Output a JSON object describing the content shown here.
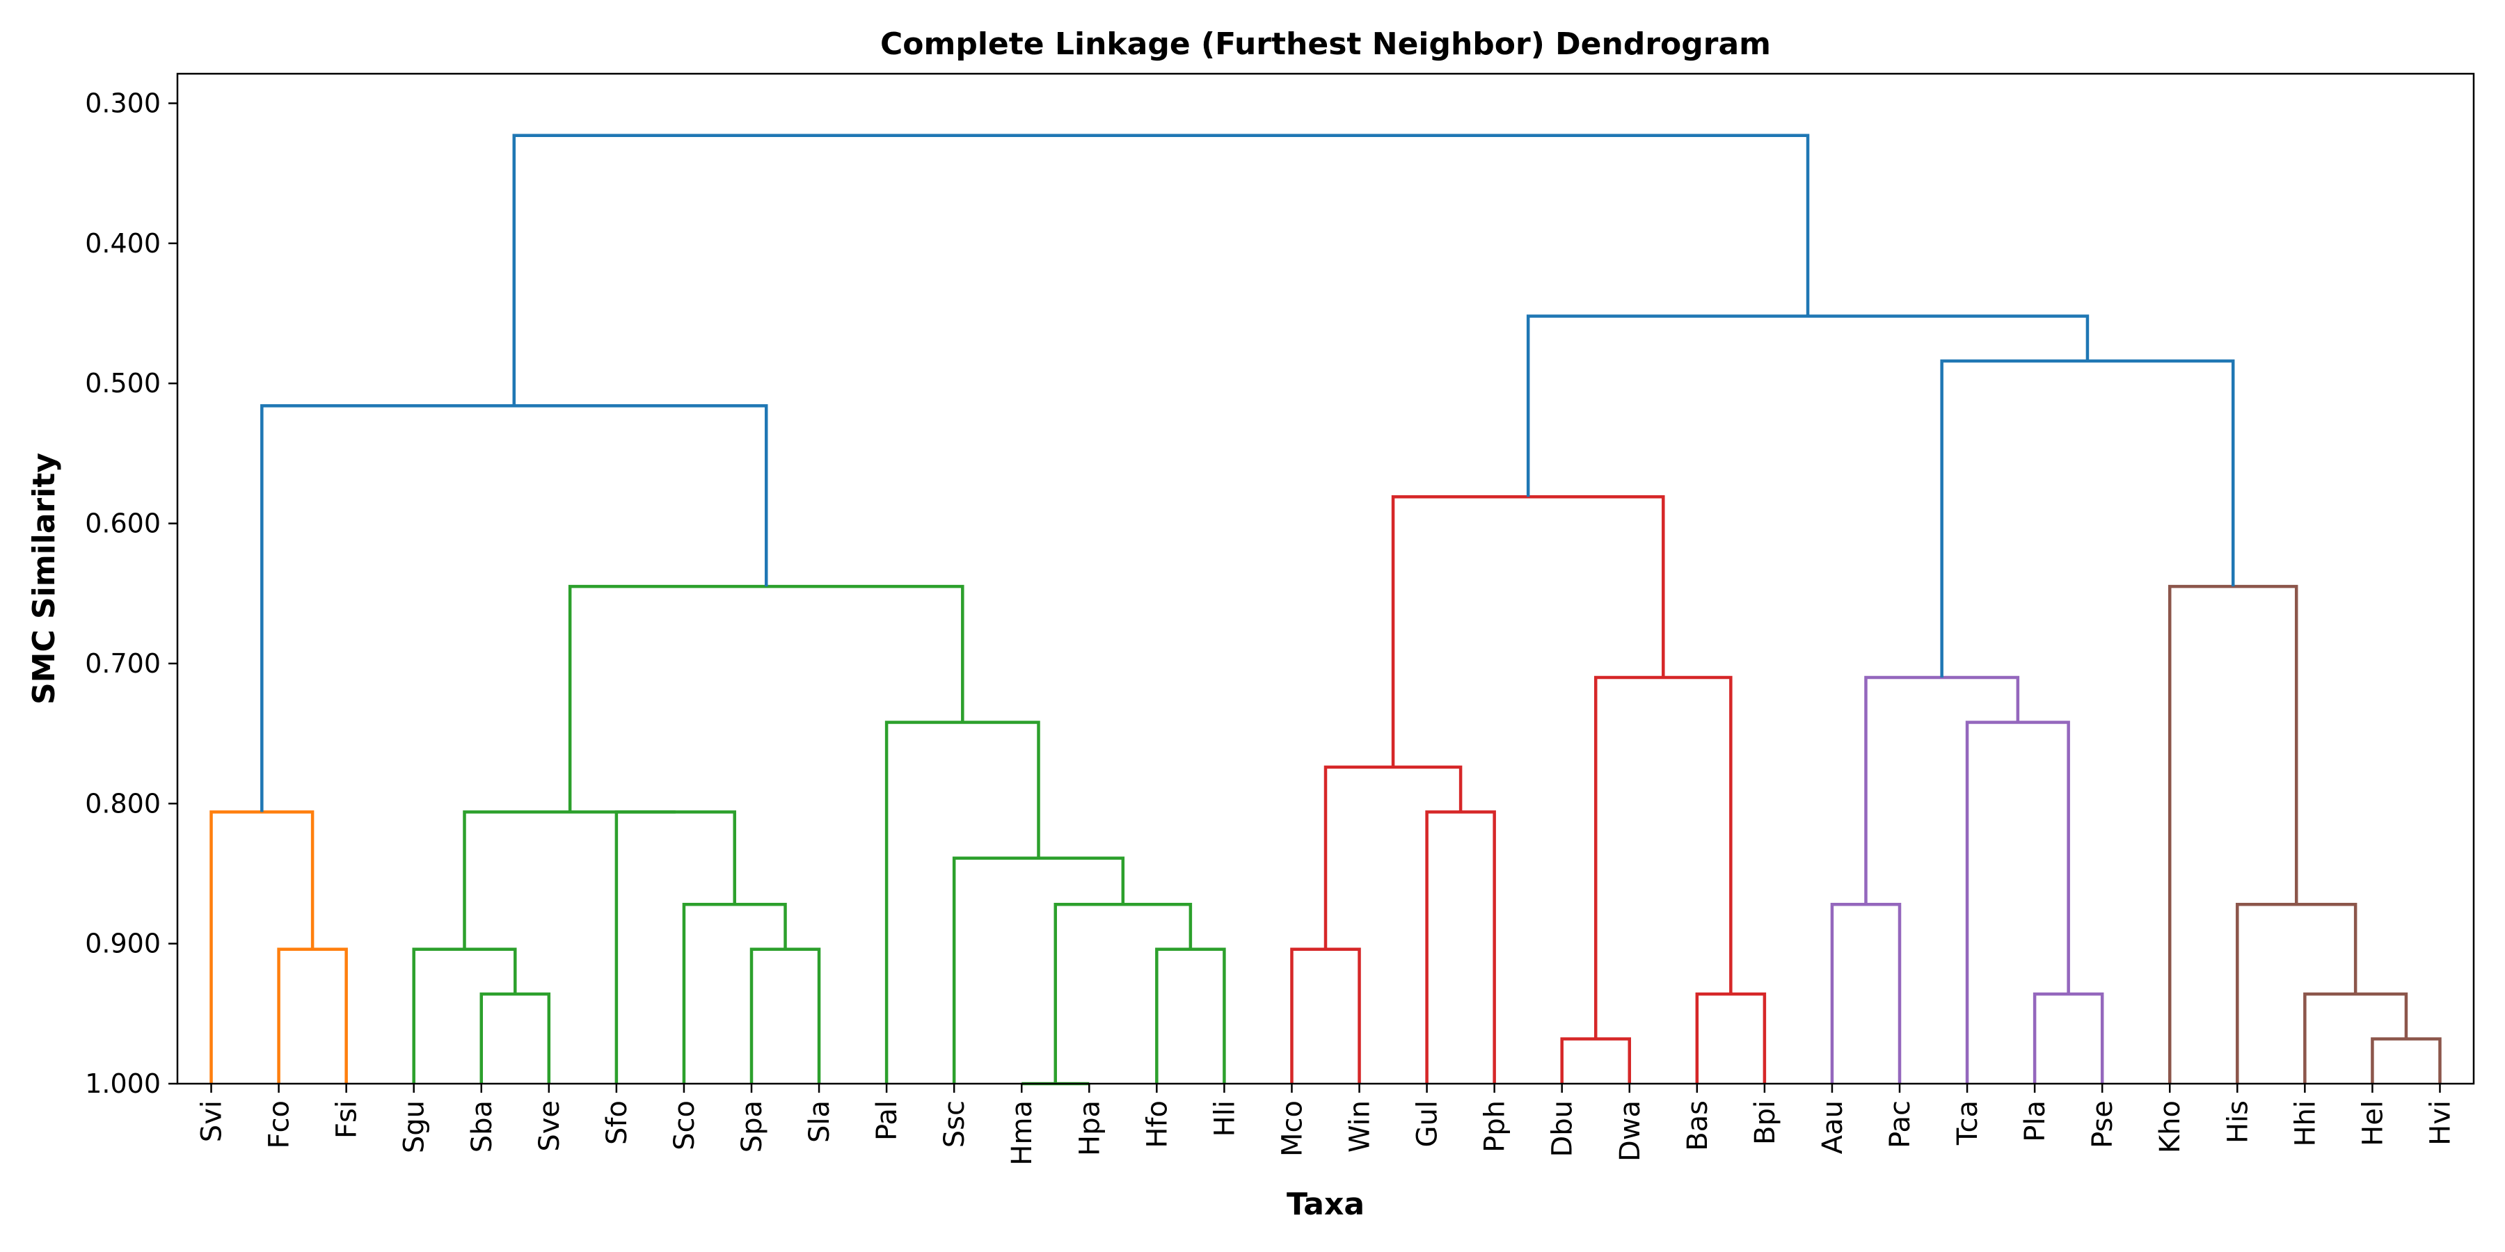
{
  "chart_data": {
    "type": "dendrogram",
    "title": "Complete Linkage (Furthest Neighbor) Dendrogram",
    "xlabel": "Taxa",
    "ylabel": "SMC Similarity",
    "ylim": [
      1.0,
      0.2789
    ],
    "yticks": [
      0.3,
      0.4,
      0.5,
      0.6,
      0.7,
      0.8,
      0.9,
      1.0
    ],
    "ytick_labels": [
      "0.300",
      "0.400",
      "0.500",
      "0.600",
      "0.700",
      "0.800",
      "0.900",
      "1.000"
    ],
    "grid": false,
    "leaves": [
      "Svi",
      "Fco",
      "Fsi",
      "Sgu",
      "Sba",
      "Sve",
      "Sfo",
      "Sco",
      "Spa",
      "Sla",
      "Pal",
      "Ssc",
      "Hma",
      "Hpa",
      "Hfo",
      "Hli",
      "Mco",
      "Win",
      "Gul",
      "Pph",
      "Dbu",
      "Dwa",
      "Bas",
      "Bpi",
      "Aau",
      "Pac",
      "Tca",
      "Pla",
      "Pse",
      "Kho",
      "His",
      "Hhi",
      "Hel",
      "Hvi"
    ],
    "colors": {
      "orange": "#ff7f0e",
      "green": "#2ca02c",
      "red": "#d62728",
      "purple": "#9467bd",
      "brown": "#8c564b",
      "above_threshold": "#1f77b4"
    },
    "merges": [
      {
        "left": "Fco",
        "right": "Fsi",
        "height": 0.904,
        "color": "orange"
      },
      {
        "left": "Svi",
        "right": "C1",
        "height": 0.806,
        "color": "orange"
      },
      {
        "left": "Sba",
        "right": "Sve",
        "height": 0.936,
        "color": "green"
      },
      {
        "left": "Sgu",
        "right": "C3",
        "height": 0.904,
        "color": "green"
      },
      {
        "left": "Spa",
        "right": "Sla",
        "height": 0.904,
        "color": "green"
      },
      {
        "left": "Sco",
        "right": "C5",
        "height": 0.872,
        "color": "green"
      },
      {
        "left": "Sfo",
        "right": "C6",
        "height": 0.806,
        "color": "green"
      },
      {
        "left": "C4",
        "right": "C7",
        "height": 0.806,
        "color": "green"
      },
      {
        "left": "Hma",
        "right": "Hpa",
        "height": 1.0,
        "color": "green"
      },
      {
        "left": "Hfo",
        "right": "Hli",
        "height": 0.904,
        "color": "green"
      },
      {
        "left": "C9",
        "right": "C10",
        "height": 0.872,
        "color": "green"
      },
      {
        "left": "Ssc",
        "right": "C11",
        "height": 0.839,
        "color": "green"
      },
      {
        "left": "Pal",
        "right": "C12",
        "height": 0.742,
        "color": "green"
      },
      {
        "left": "C8",
        "right": "C13",
        "height": 0.645,
        "color": "green"
      },
      {
        "left": "C2",
        "right": "C14",
        "height": 0.516,
        "color": "above_threshold"
      },
      {
        "left": "Mco",
        "right": "Win",
        "height": 0.904,
        "color": "red"
      },
      {
        "left": "Gul",
        "right": "Pph",
        "height": 0.806,
        "color": "red"
      },
      {
        "left": "C16",
        "right": "C17",
        "height": 0.774,
        "color": "red"
      },
      {
        "left": "Dbu",
        "right": "Dwa",
        "height": 0.968,
        "color": "red"
      },
      {
        "left": "Bas",
        "right": "Bpi",
        "height": 0.936,
        "color": "red"
      },
      {
        "left": "C19",
        "right": "C20",
        "height": 0.71,
        "color": "red"
      },
      {
        "left": "C18",
        "right": "C21",
        "height": 0.581,
        "color": "red"
      },
      {
        "left": "Aau",
        "right": "Pac",
        "height": 0.872,
        "color": "purple"
      },
      {
        "left": "Pla",
        "right": "Pse",
        "height": 0.936,
        "color": "purple"
      },
      {
        "left": "Tca",
        "right": "C24",
        "height": 0.742,
        "color": "purple"
      },
      {
        "left": "C23",
        "right": "C25",
        "height": 0.71,
        "color": "purple"
      },
      {
        "left": "Hel",
        "right": "Hvi",
        "height": 0.968,
        "color": "brown"
      },
      {
        "left": "Hhi",
        "right": "C27",
        "height": 0.936,
        "color": "brown"
      },
      {
        "left": "His",
        "right": "C28",
        "height": 0.872,
        "color": "brown"
      },
      {
        "left": "Kho",
        "right": "C29",
        "height": 0.645,
        "color": "brown"
      },
      {
        "left": "C26",
        "right": "C30",
        "height": 0.484,
        "color": "above_threshold"
      },
      {
        "left": "C22",
        "right": "C31",
        "height": 0.452,
        "color": "above_threshold"
      },
      {
        "left": "C15",
        "right": "C32",
        "height": 0.323,
        "color": "above_threshold"
      }
    ]
  }
}
